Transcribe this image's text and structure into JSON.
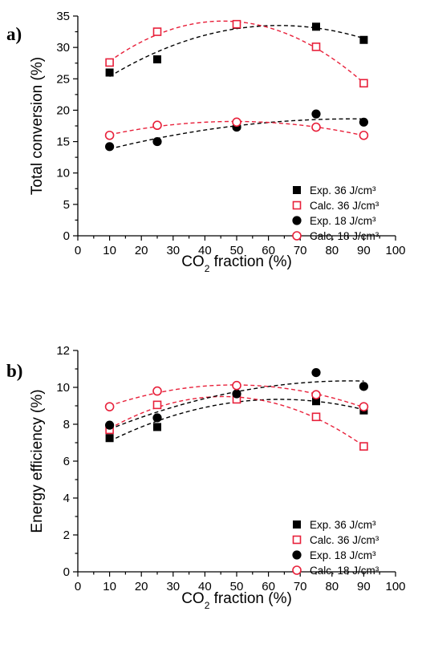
{
  "chart_data": [
    {
      "panel_label": "a)",
      "type": "scatter",
      "xlabel": {
        "main": "CO",
        "sub": "2",
        "rest": " fraction (%)"
      },
      "ylabel": "Total conversion (%)",
      "xlim": [
        0,
        100
      ],
      "ylim": [
        0,
        35
      ],
      "xticks": [
        "0",
        "10",
        "20",
        "30",
        "40",
        "50",
        "60",
        "70",
        "80",
        "90",
        "100"
      ],
      "yticks": [
        "0",
        "5",
        "10",
        "15",
        "20",
        "25",
        "30",
        "35"
      ],
      "legend_position": "bottom-right",
      "series": [
        {
          "name": "Exp. 36 J/cm³",
          "marker": "square-filled",
          "color": "#000000",
          "x": [
            10,
            25,
            50,
            75,
            90
          ],
          "y": [
            26.0,
            28.1,
            33.6,
            33.3,
            31.2
          ]
        },
        {
          "name": "Calc. 36 J/cm³",
          "marker": "square-open",
          "color": "#e8203a",
          "x": [
            10,
            25,
            50,
            75,
            90
          ],
          "y": [
            27.6,
            32.5,
            33.7,
            30.1,
            24.3
          ]
        },
        {
          "name": "Exp. 18 J/cm³",
          "marker": "circle-filled",
          "color": "#000000",
          "x": [
            10,
            25,
            50,
            75,
            90
          ],
          "y": [
            14.2,
            15.0,
            17.3,
            19.4,
            18.1
          ]
        },
        {
          "name": "Calc. 18 J/cm³",
          "marker": "circle-open",
          "color": "#e8203a",
          "x": [
            10,
            25,
            50,
            75,
            90
          ],
          "y": [
            16.0,
            17.6,
            18.1,
            17.3,
            16.0
          ]
        }
      ]
    },
    {
      "panel_label": "b)",
      "type": "scatter",
      "xlabel": {
        "main": "CO",
        "sub": "2",
        "rest": " fraction (%)"
      },
      "ylabel": "Energy efficiency (%)",
      "xlim": [
        0,
        100
      ],
      "ylim": [
        0,
        12
      ],
      "xticks": [
        "0",
        "10",
        "20",
        "30",
        "40",
        "50",
        "60",
        "70",
        "80",
        "90",
        "100"
      ],
      "yticks": [
        "0",
        "2",
        "4",
        "6",
        "8",
        "10",
        "12"
      ],
      "legend_position": "bottom-right",
      "series": [
        {
          "name": "Exp. 36 J/cm³",
          "marker": "square-filled",
          "color": "#000000",
          "x": [
            10,
            25,
            50,
            75,
            90
          ],
          "y": [
            7.25,
            7.85,
            9.4,
            9.25,
            8.75
          ]
        },
        {
          "name": "Calc. 36 J/cm³",
          "marker": "square-open",
          "color": "#e8203a",
          "x": [
            10,
            25,
            50,
            75,
            90
          ],
          "y": [
            7.7,
            9.05,
            9.35,
            8.4,
            6.8
          ]
        },
        {
          "name": "Exp. 18 J/cm³",
          "marker": "circle-filled",
          "color": "#000000",
          "x": [
            10,
            25,
            50,
            75,
            90
          ],
          "y": [
            7.95,
            8.35,
            9.65,
            10.8,
            10.05
          ]
        },
        {
          "name": "Calc. 18 J/cm³",
          "marker": "circle-open",
          "color": "#e8203a",
          "x": [
            10,
            25,
            50,
            75,
            90
          ],
          "y": [
            8.95,
            9.8,
            10.1,
            9.6,
            8.95
          ]
        }
      ]
    }
  ]
}
